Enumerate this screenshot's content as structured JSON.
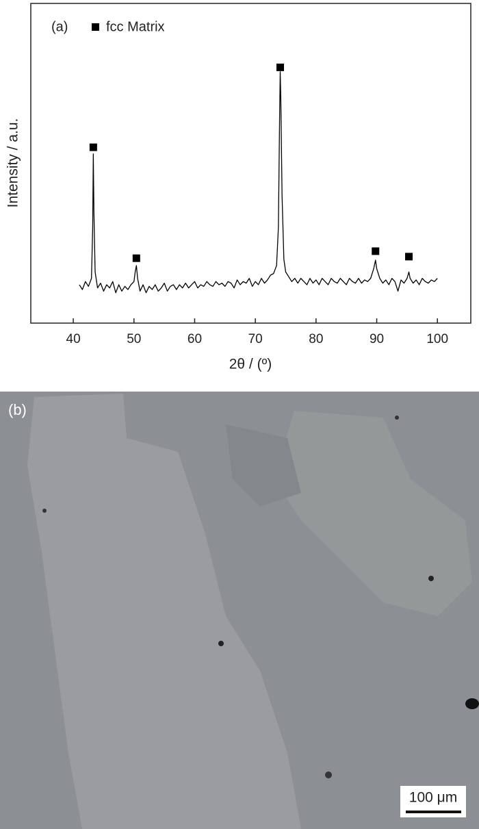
{
  "chart_data": {
    "type": "line",
    "annotation": "(a)",
    "xlabel": "2θ / (º)",
    "ylabel": "Intensity / a.u.",
    "xlim": [
      33,
      105.5
    ],
    "xticks": [
      40,
      50,
      60,
      70,
      80,
      90,
      100
    ],
    "ylim": [
      0,
      100
    ],
    "series": [
      {
        "color": "#000000",
        "x": [
          41,
          41.5,
          42,
          42.5,
          43,
          43.2,
          43.3,
          43.4,
          43.6,
          44,
          44.5,
          45,
          45.5,
          46,
          46.5,
          47,
          47.5,
          48,
          48.5,
          49,
          49.5,
          50,
          50.2,
          50.4,
          50.6,
          51,
          51.5,
          52,
          52.5,
          53,
          53.5,
          54,
          54.5,
          55,
          55.5,
          56,
          56.5,
          57,
          57.5,
          58,
          58.5,
          59,
          59.5,
          60,
          60.5,
          61,
          61.5,
          62,
          62.5,
          63,
          63.5,
          64,
          64.5,
          65,
          65.5,
          66,
          66.5,
          67,
          67.5,
          68,
          68.5,
          69,
          69.5,
          70,
          70.5,
          71,
          71.5,
          72,
          72.5,
          73,
          73.5,
          73.8,
          74,
          74.1,
          74.2,
          74.4,
          74.7,
          75,
          75.5,
          76,
          76.5,
          77,
          77.5,
          78,
          78.5,
          79,
          79.5,
          80,
          80.5,
          81,
          81.5,
          82,
          82.5,
          83,
          83.5,
          84,
          84.5,
          85,
          85.5,
          86,
          86.5,
          87,
          87.5,
          88,
          88.5,
          89,
          89.5,
          89.8,
          90,
          90.5,
          91,
          91.5,
          92,
          92.5,
          93,
          93.5,
          94,
          94.5,
          95,
          95.3,
          95.5,
          96,
          96.5,
          97,
          97.5,
          98,
          98.5,
          99,
          99.5,
          100
        ],
        "values": [
          12,
          10.5,
          13,
          11.5,
          14,
          30,
          52.9,
          35,
          16,
          11,
          12.5,
          10,
          12,
          11,
          13,
          9.5,
          12,
          10,
          11.5,
          10.5,
          12,
          13,
          16,
          18,
          14,
          10,
          12,
          9.5,
          11.5,
          10.5,
          12,
          10,
          11,
          12.5,
          10,
          11.5,
          12,
          10.5,
          12,
          11,
          12.5,
          11,
          12,
          13,
          11,
          12,
          11.5,
          13,
          12,
          11.5,
          13,
          12,
          12.5,
          11.5,
          13,
          12.5,
          11,
          13.5,
          12,
          13,
          12.5,
          14,
          11.5,
          13,
          12,
          14,
          12.5,
          13.5,
          15,
          15.5,
          18,
          30,
          65,
          78.6,
          70,
          40,
          20,
          16,
          14.5,
          13,
          14,
          12.5,
          14,
          13,
          12,
          14,
          12.5,
          13.5,
          12,
          14,
          13,
          12,
          14,
          13,
          12.5,
          14,
          13,
          12,
          14,
          13,
          12.5,
          14,
          12.5,
          13.5,
          13,
          14,
          17,
          19.7,
          17,
          14,
          12.5,
          13.5,
          12,
          14,
          13,
          10,
          13.5,
          12.5,
          14,
          16,
          14,
          12.5,
          13.5,
          12,
          14,
          13,
          12.5,
          13.5,
          13,
          14
        ]
      },
      {
        "name": "fcc Matrix",
        "type": "scatter",
        "color": "#000000",
        "x": [
          43.3,
          50.4,
          74.1,
          89.8,
          95.3
        ],
        "values": [
          55,
          20.3,
          80,
          22.5,
          20.8
        ]
      }
    ]
  },
  "micrograph": {
    "label": "(b)",
    "scale_bar": "100 μm"
  }
}
